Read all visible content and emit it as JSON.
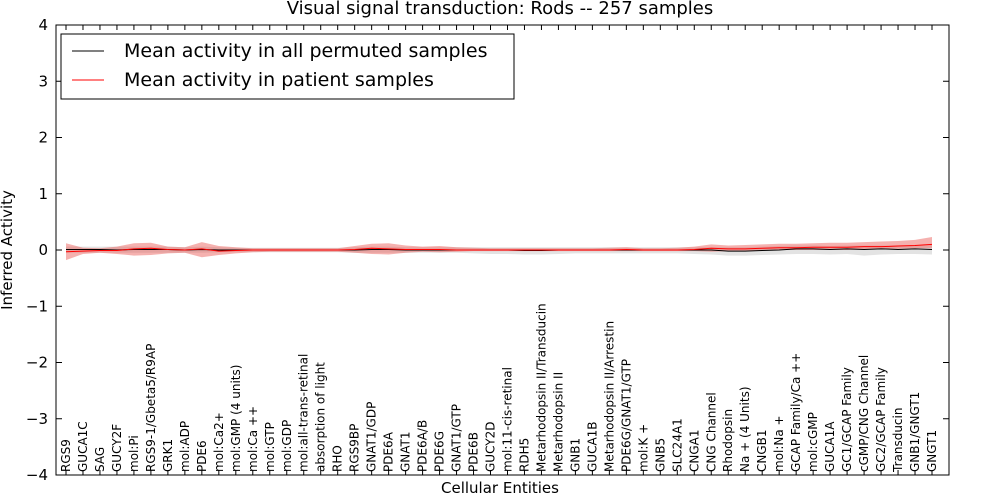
{
  "chart_data": {
    "type": "line",
    "title": "Visual signal transduction: Rods -- 257 samples",
    "xlabel": "Cellular Entities",
    "ylabel": "Inferred Activity",
    "ylim": [
      -4,
      4
    ],
    "yticks": [
      -4,
      -3,
      -2,
      -1,
      0,
      1,
      2,
      3,
      4
    ],
    "ytick_labels": [
      "−4",
      "−3",
      "−2",
      "−1",
      "0",
      "1",
      "2",
      "3",
      "4"
    ],
    "grid": false,
    "legend_position": "top-left",
    "categories": [
      "RGS9",
      "GUCA1C",
      "SAG",
      "GUCY2F",
      "mol:Pi",
      "RGS9-1/Gbeta5/R9AP",
      "GRK1",
      "mol:ADP",
      "PDE6",
      "mol:Ca2+",
      "mol:GMP (4 units)",
      "mol:Ca ++",
      "mol:GTP",
      "mol:GDP",
      "mol:all-trans-retinal",
      "absorption of light",
      "RHO",
      "RGS9BP",
      "GNAT1/GDP",
      "PDE6A",
      "GNAT1",
      "PDE6A/B",
      "PDE6G",
      "GNAT1/GTP",
      "PDE6B",
      "GUCY2D",
      "mol:11-cis-retinal",
      "RDH5",
      "Metarhodopsin II/Transducin",
      "Metarhodopsin II",
      "GNB1",
      "GUCA1B",
      "Metarhodopsin II/Arrestin",
      "PDE6G/GNAT1/GTP",
      "mol:K +",
      "GNB5",
      "SLC24A1",
      "CNGA1",
      "CNG Channel",
      "Rhodopsin",
      "Na + (4 Units)",
      "CNGB1",
      "mol:Na +",
      "GCAP Family/Ca ++",
      "mol:cGMP",
      "GUCA1A",
      "GC1/GCAP Family",
      "cGMP/CNG Channel",
      "GC2/GCAP Family",
      "Transducin",
      "GNB1/GNGT1",
      "GNGT1"
    ],
    "series": [
      {
        "name": "Mean activity in all permuted samples",
        "color": "#000000",
        "values": [
          0.01,
          0.01,
          0.01,
          0.0,
          0.01,
          0.01,
          0.01,
          0.0,
          0.01,
          0.0,
          0.0,
          0.0,
          0.0,
          0.0,
          0.0,
          0.0,
          0.0,
          0.0,
          0.01,
          0.01,
          0.0,
          0.0,
          0.0,
          0.0,
          0.0,
          0.0,
          0.0,
          -0.01,
          -0.01,
          0.0,
          0.0,
          0.0,
          0.0,
          0.0,
          0.0,
          0.0,
          0.0,
          0.0,
          0.0,
          -0.02,
          -0.02,
          -0.01,
          0.0,
          0.02,
          0.02,
          0.01,
          0.02,
          0.01,
          0.02,
          0.01,
          0.02,
          0.01
        ],
        "band_lower": [
          -0.05,
          -0.05,
          -0.05,
          -0.05,
          -0.05,
          -0.05,
          -0.05,
          -0.05,
          -0.05,
          -0.04,
          -0.04,
          -0.04,
          -0.04,
          -0.04,
          -0.04,
          -0.04,
          -0.04,
          -0.05,
          -0.05,
          -0.05,
          -0.05,
          -0.05,
          -0.05,
          -0.05,
          -0.06,
          -0.07,
          -0.07,
          -0.08,
          -0.08,
          -0.07,
          -0.06,
          -0.06,
          -0.06,
          -0.06,
          -0.06,
          -0.06,
          -0.06,
          -0.07,
          -0.08,
          -0.1,
          -0.1,
          -0.09,
          -0.08,
          -0.07,
          -0.07,
          -0.08,
          -0.07,
          -0.1,
          -0.08,
          -0.07,
          -0.07,
          -0.08
        ],
        "band_upper": [
          0.06,
          0.06,
          0.06,
          0.06,
          0.06,
          0.06,
          0.06,
          0.05,
          0.06,
          0.05,
          0.04,
          0.04,
          0.04,
          0.04,
          0.04,
          0.04,
          0.04,
          0.05,
          0.06,
          0.06,
          0.05,
          0.05,
          0.05,
          0.05,
          0.05,
          0.05,
          0.05,
          0.05,
          0.05,
          0.05,
          0.05,
          0.05,
          0.05,
          0.05,
          0.05,
          0.05,
          0.05,
          0.05,
          0.05,
          0.05,
          0.05,
          0.06,
          0.07,
          0.08,
          0.08,
          0.07,
          0.08,
          0.08,
          0.08,
          0.08,
          0.08,
          0.09
        ]
      },
      {
        "name": "Mean activity in patient samples",
        "color": "#ff0000",
        "values": [
          -0.03,
          -0.02,
          -0.01,
          -0.01,
          0.02,
          0.03,
          0.01,
          0.0,
          0.02,
          -0.02,
          -0.01,
          0.0,
          0.0,
          0.0,
          0.0,
          0.0,
          0.0,
          0.01,
          0.03,
          0.02,
          0.01,
          0.01,
          0.01,
          0.0,
          0.0,
          0.0,
          0.0,
          0.0,
          0.0,
          0.0,
          0.0,
          0.0,
          0.0,
          0.01,
          0.0,
          0.0,
          0.0,
          0.01,
          0.03,
          0.02,
          0.02,
          0.03,
          0.04,
          0.04,
          0.05,
          0.05,
          0.05,
          0.06,
          0.06,
          0.07,
          0.08,
          0.1
        ],
        "band_lower": [
          -0.18,
          -0.07,
          -0.05,
          -0.07,
          -0.1,
          -0.09,
          -0.06,
          -0.05,
          -0.13,
          -0.09,
          -0.06,
          -0.04,
          -0.03,
          -0.03,
          -0.03,
          -0.03,
          -0.03,
          -0.05,
          -0.07,
          -0.08,
          -0.05,
          -0.03,
          -0.04,
          -0.03,
          -0.02,
          -0.02,
          -0.02,
          -0.02,
          -0.02,
          -0.02,
          -0.02,
          -0.02,
          -0.02,
          -0.02,
          -0.02,
          -0.02,
          -0.02,
          -0.02,
          -0.03,
          -0.02,
          -0.02,
          -0.01,
          0.0,
          0.0,
          0.0,
          0.0,
          0.0,
          0.01,
          0.01,
          0.02,
          0.03,
          0.03
        ],
        "band_upper": [
          0.12,
          0.04,
          0.03,
          0.06,
          0.12,
          0.13,
          0.06,
          0.05,
          0.14,
          0.07,
          0.05,
          0.03,
          0.03,
          0.03,
          0.03,
          0.03,
          0.03,
          0.07,
          0.11,
          0.12,
          0.08,
          0.06,
          0.07,
          0.05,
          0.04,
          0.03,
          0.03,
          0.03,
          0.03,
          0.03,
          0.03,
          0.03,
          0.04,
          0.05,
          0.03,
          0.03,
          0.04,
          0.06,
          0.1,
          0.08,
          0.09,
          0.1,
          0.11,
          0.11,
          0.12,
          0.13,
          0.13,
          0.14,
          0.15,
          0.16,
          0.18,
          0.23
        ]
      }
    ]
  }
}
